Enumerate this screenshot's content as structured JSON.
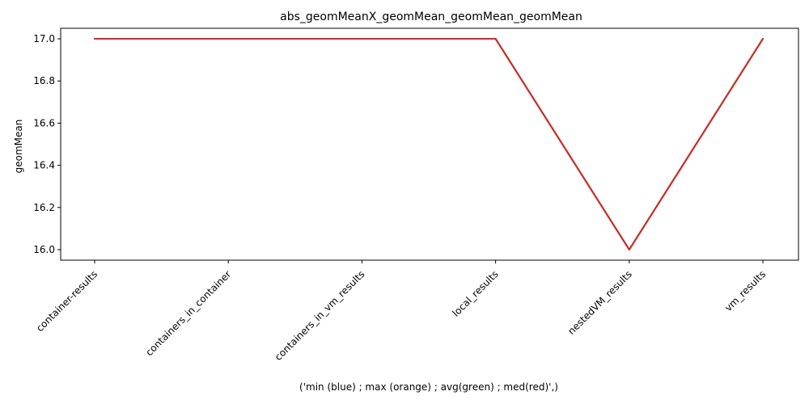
{
  "chart_data": {
    "type": "line",
    "title": "abs_geomMeanX_geomMean_geomMean_geomMean",
    "xlabel": "('min (blue) ; max (orange) ; avg(green) ; med(red)',)",
    "ylabel": "geomMean",
    "categories": [
      "container-results",
      "containers_in_container",
      "containers_in_vm_results",
      "local_results",
      "nestedVM_results",
      "vm_results"
    ],
    "ylim": [
      15.95,
      17.05
    ],
    "yticks": [
      16.0,
      16.2,
      16.4,
      16.6,
      16.8,
      17.0
    ],
    "ytick_labels": [
      "16.0",
      "16.2",
      "16.4",
      "16.6",
      "16.8",
      "17.0"
    ],
    "series": [
      {
        "name": "min",
        "color": "#1f77b4",
        "values": [
          17,
          17,
          17,
          17,
          16,
          17
        ]
      },
      {
        "name": "max",
        "color": "#ff7f0e",
        "values": [
          17,
          17,
          17,
          17,
          16,
          17
        ]
      },
      {
        "name": "avg",
        "color": "#2ca02c",
        "values": [
          17,
          17,
          17,
          17,
          16,
          17
        ]
      },
      {
        "name": "med",
        "color": "#d62728",
        "values": [
          17,
          17,
          17,
          17,
          16,
          17
        ]
      }
    ],
    "grid": false,
    "legend": "none"
  }
}
